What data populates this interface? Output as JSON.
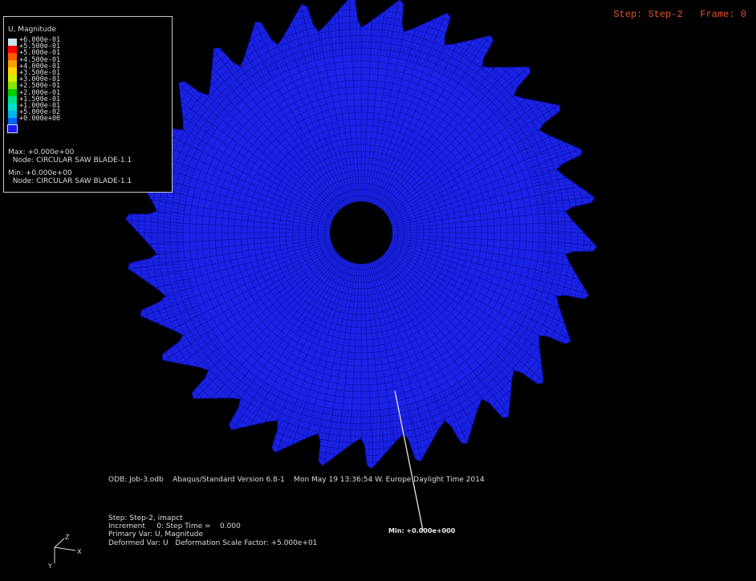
{
  "header": {
    "step_frame": "Step: Step-2   Frame: 0"
  },
  "legend": {
    "title": "U, Magnitude",
    "entries": [
      {
        "label": "+6.000e-01",
        "color": "#c8e6ec"
      },
      {
        "label": "+5.500e-01",
        "color": "#ff0000"
      },
      {
        "label": "+5.000e-01",
        "color": "#ff5a00"
      },
      {
        "label": "+4.500e-01",
        "color": "#ff9f00"
      },
      {
        "label": "+4.000e-01",
        "color": "#ffd800"
      },
      {
        "label": "+3.500e-01",
        "color": "#d4f000"
      },
      {
        "label": "+3.000e-01",
        "color": "#86e800"
      },
      {
        "label": "+2.500e-01",
        "color": "#00d200"
      },
      {
        "label": "+2.000e-01",
        "color": "#00e08a"
      },
      {
        "label": "+1.500e-01",
        "color": "#00e0d0"
      },
      {
        "label": "+1.000e-01",
        "color": "#00b4f0"
      },
      {
        "label": "+5.000e-02",
        "color": "#0064ff"
      },
      {
        "label": "+0.000e+00",
        "color": "#1a1aff"
      }
    ],
    "max_value": "Max: +0.000e+00",
    "max_node": "  Node: CIRCULAR SAW BLADE-1.1",
    "min_value": "Min: +0.000e+00",
    "min_node": "  Node: CIRCULAR SAW BLADE-1.1"
  },
  "model": {
    "fill_color": "#1b23e8",
    "mesh_color": "#0a0f9a",
    "teeth_count": 30
  },
  "info": {
    "odb_line": "ODB: Job-3.odb    Abaqus/Standard Version 6.8-1    Mon May 19 13:36:54 W. Europe Daylight Time 2014",
    "step_line": "Step: Step-2, imapct",
    "increment_line": "Increment     0: Step Time =    0.000",
    "primary_var_line": "Primary Var: U, Magnitude",
    "deformed_var_line": "Deformed Var: U   Deformation Scale Factor: +5.000e+01"
  },
  "min_marker": {
    "label": "Min: +0.000e+000"
  },
  "triad": {
    "z_label": "Z",
    "x_label": "X",
    "y_label": "Y"
  }
}
